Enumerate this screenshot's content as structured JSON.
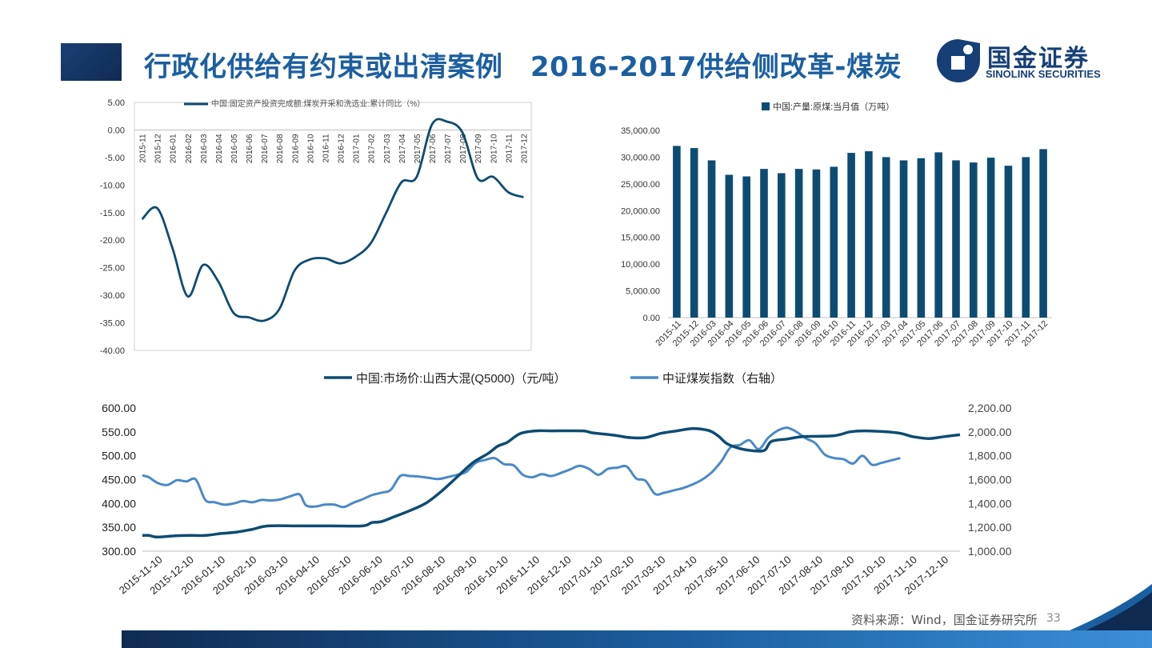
{
  "header": {
    "title": "行政化供给有约束或出清案例　2016-2017供给侧改革-煤炭"
  },
  "logo": {
    "cn": "国金证券",
    "en": "SINOLINK SECURITIES"
  },
  "footer": {
    "source": "资料来源：Wind，国金证券研究所",
    "page": "33"
  },
  "colors": {
    "dark_navy": "#0d4c72",
    "light_blue": "#4a89c8",
    "accent_blue": "#1c5fa0"
  },
  "chart_data": [
    {
      "type": "line",
      "title": "",
      "legend": [
        "中国:固定资产投资完成额:煤炭开采和洗选业:累计同比（%）"
      ],
      "categories": [
        "2015-11",
        "2015-12",
        "2016-01",
        "2016-02",
        "2016-03",
        "2016-04",
        "2016-05",
        "2016-06",
        "2016-07",
        "2016-08",
        "2016-09",
        "2016-10",
        "2016-11",
        "2016-12",
        "2017-01",
        "2017-02",
        "2017-03",
        "2017-04",
        "2017-05",
        "2017-06",
        "2017-07",
        "2017-08",
        "2017-09",
        "2017-10",
        "2017-11",
        "2017-12"
      ],
      "plot_points": [
        {
          "x": 0,
          "y": -16.2
        },
        {
          "x": 1,
          "y": -14.2
        },
        {
          "x": 2,
          "y": -21.5
        },
        {
          "x": 3,
          "y": -30.2
        },
        {
          "x": 4,
          "y": -24.5
        },
        {
          "x": 5,
          "y": -27.5
        },
        {
          "x": 6,
          "y": -33.2
        },
        {
          "x": 7,
          "y": -34.0
        },
        {
          "x": 8,
          "y": -34.6
        },
        {
          "x": 9,
          "y": -32.5
        },
        {
          "x": 10,
          "y": -25.5
        },
        {
          "x": 11,
          "y": -23.5
        },
        {
          "x": 12,
          "y": -23.3
        },
        {
          "x": 13,
          "y": -24.2
        },
        {
          "x": 14,
          "y": -23.0
        },
        {
          "x": 15,
          "y": -20.5
        },
        {
          "x": 16,
          "y": -15.0
        },
        {
          "x": 17,
          "y": -9.5
        },
        {
          "x": 18,
          "y": -8.5
        },
        {
          "x": 19,
          "y": 1.0
        },
        {
          "x": 20,
          "y": 1.5
        },
        {
          "x": 21,
          "y": -0.5
        },
        {
          "x": 22,
          "y": -8.8
        },
        {
          "x": 23,
          "y": -8.5
        },
        {
          "x": 24,
          "y": -11.3
        },
        {
          "x": 25,
          "y": -12.2
        }
      ],
      "y_ticks": [
        "5.00",
        "0.00",
        "-5.00",
        "-10.00",
        "-15.00",
        "-20.00",
        "-25.00",
        "-30.00",
        "-35.00",
        "-40.00"
      ],
      "ylim": [
        -40,
        5
      ]
    },
    {
      "type": "bar",
      "title": "",
      "legend": [
        "中国:产量:原煤:当月值（万吨）"
      ],
      "categories": [
        "2015-11",
        "2015-12",
        "2016-03",
        "2016-04",
        "2016-05",
        "2016-06",
        "2016-07",
        "2016-08",
        "2016-09",
        "2016-10",
        "2016-11",
        "2016-12",
        "2017-03",
        "2017-04",
        "2017-05",
        "2017-06",
        "2017-07",
        "2017-08",
        "2017-09",
        "2017-10",
        "2017-11",
        "2017-12"
      ],
      "values": [
        32100,
        31700,
        29400,
        26700,
        26400,
        27800,
        27000,
        27800,
        27700,
        28200,
        30800,
        31100,
        30000,
        29400,
        29800,
        30900,
        29400,
        29000,
        29900,
        28400,
        30000,
        31500
      ],
      "y_ticks": [
        "35,000.00",
        "30,000.00",
        "25,000.00",
        "20,000.00",
        "15,000.00",
        "10,000.00",
        "5,000.00",
        "0.00"
      ],
      "ylim": [
        0,
        35000
      ]
    },
    {
      "type": "line",
      "title": "",
      "legend": [
        "中国:市场价:山西大混(Q5000)（元/吨）",
        "中证煤炭指数（右轴）"
      ],
      "categories": [
        "2015-11-10",
        "2015-12-10",
        "2016-01-10",
        "2016-02-10",
        "2016-03-10",
        "2016-04-10",
        "2016-05-10",
        "2016-06-10",
        "2016-07-10",
        "2016-08-10",
        "2016-09-10",
        "2016-10-10",
        "2016-11-10",
        "2016-12-10",
        "2017-01-10",
        "2017-02-10",
        "2017-03-10",
        "2017-04-10",
        "2017-05-10",
        "2017-06-10",
        "2017-07-10",
        "2017-08-10",
        "2017-09-10",
        "2017-10-10",
        "2017-11-10",
        "2017-12-10"
      ],
      "y_ticks_left": [
        "600.00",
        "550.00",
        "500.00",
        "450.00",
        "400.00",
        "350.00",
        "300.00"
      ],
      "y_ticks_right": [
        "2,200.00",
        "2,000.00",
        "1,800.00",
        "1,600.00",
        "1,400.00",
        "1,200.00",
        "1,000.00"
      ],
      "ylim_left": [
        300,
        600
      ],
      "ylim_right": [
        1000,
        2200
      ],
      "series": [
        {
          "name": "中国:市场价:山西大混(Q5000)（元/吨）",
          "axis": "left",
          "points": [
            {
              "x": 0.0,
              "y": 333
            },
            {
              "x": 0.2,
              "y": 333
            },
            {
              "x": 0.4,
              "y": 330
            },
            {
              "x": 0.6,
              "y": 330
            },
            {
              "x": 1.0,
              "y": 332
            },
            {
              "x": 1.5,
              "y": 333
            },
            {
              "x": 2.0,
              "y": 333
            },
            {
              "x": 2.5,
              "y": 337
            },
            {
              "x": 3.0,
              "y": 340
            },
            {
              "x": 3.5,
              "y": 346
            },
            {
              "x": 4.0,
              "y": 353
            },
            {
              "x": 5.0,
              "y": 353
            },
            {
              "x": 6.0,
              "y": 353
            },
            {
              "x": 7.0,
              "y": 353
            },
            {
              "x": 7.3,
              "y": 360
            },
            {
              "x": 7.6,
              "y": 362
            },
            {
              "x": 8.0,
              "y": 372
            },
            {
              "x": 8.5,
              "y": 385
            },
            {
              "x": 9.0,
              "y": 400
            },
            {
              "x": 9.5,
              "y": 425
            },
            {
              "x": 10.0,
              "y": 455
            },
            {
              "x": 10.5,
              "y": 485
            },
            {
              "x": 11.0,
              "y": 505
            },
            {
              "x": 11.3,
              "y": 520
            },
            {
              "x": 11.6,
              "y": 528
            },
            {
              "x": 12.0,
              "y": 546
            },
            {
              "x": 12.5,
              "y": 552
            },
            {
              "x": 13.0,
              "y": 552
            },
            {
              "x": 14.0,
              "y": 552
            },
            {
              "x": 14.3,
              "y": 548
            },
            {
              "x": 15.0,
              "y": 543
            },
            {
              "x": 15.5,
              "y": 538
            },
            {
              "x": 16.0,
              "y": 538
            },
            {
              "x": 16.5,
              "y": 547
            },
            {
              "x": 17.0,
              "y": 552
            },
            {
              "x": 17.5,
              "y": 557
            },
            {
              "x": 18.0,
              "y": 553
            },
            {
              "x": 18.3,
              "y": 542
            },
            {
              "x": 18.6,
              "y": 525
            },
            {
              "x": 19.0,
              "y": 515
            },
            {
              "x": 19.5,
              "y": 510
            },
            {
              "x": 19.8,
              "y": 512
            },
            {
              "x": 20.0,
              "y": 530
            },
            {
              "x": 20.5,
              "y": 535
            },
            {
              "x": 21.0,
              "y": 540
            },
            {
              "x": 22.0,
              "y": 542
            },
            {
              "x": 22.5,
              "y": 550
            },
            {
              "x": 23.0,
              "y": 552
            },
            {
              "x": 24.0,
              "y": 548
            },
            {
              "x": 24.5,
              "y": 540
            },
            {
              "x": 25.0,
              "y": 536
            },
            {
              "x": 25.5,
              "y": 540
            },
            {
              "x": 26.0,
              "y": 544
            }
          ]
        },
        {
          "name": "中证煤炭指数（右轴）",
          "axis": "right",
          "points": [
            {
              "x": 0.0,
              "y": 1635
            },
            {
              "x": 0.2,
              "y": 1620
            },
            {
              "x": 0.5,
              "y": 1570
            },
            {
              "x": 0.8,
              "y": 1555
            },
            {
              "x": 1.1,
              "y": 1595
            },
            {
              "x": 1.4,
              "y": 1585
            },
            {
              "x": 1.7,
              "y": 1600
            },
            {
              "x": 2.0,
              "y": 1430
            },
            {
              "x": 2.3,
              "y": 1410
            },
            {
              "x": 2.6,
              "y": 1390
            },
            {
              "x": 2.9,
              "y": 1400
            },
            {
              "x": 3.2,
              "y": 1420
            },
            {
              "x": 3.5,
              "y": 1410
            },
            {
              "x": 3.8,
              "y": 1430
            },
            {
              "x": 4.1,
              "y": 1425
            },
            {
              "x": 4.4,
              "y": 1435
            },
            {
              "x": 4.7,
              "y": 1460
            },
            {
              "x": 5.0,
              "y": 1475
            },
            {
              "x": 5.2,
              "y": 1385
            },
            {
              "x": 5.5,
              "y": 1375
            },
            {
              "x": 5.8,
              "y": 1390
            },
            {
              "x": 6.1,
              "y": 1390
            },
            {
              "x": 6.4,
              "y": 1370
            },
            {
              "x": 6.7,
              "y": 1405
            },
            {
              "x": 7.0,
              "y": 1435
            },
            {
              "x": 7.3,
              "y": 1470
            },
            {
              "x": 7.6,
              "y": 1490
            },
            {
              "x": 7.9,
              "y": 1515
            },
            {
              "x": 8.2,
              "y": 1630
            },
            {
              "x": 8.5,
              "y": 1630
            },
            {
              "x": 8.8,
              "y": 1625
            },
            {
              "x": 9.1,
              "y": 1615
            },
            {
              "x": 9.4,
              "y": 1605
            },
            {
              "x": 9.7,
              "y": 1620
            },
            {
              "x": 10.0,
              "y": 1640
            },
            {
              "x": 10.3,
              "y": 1665
            },
            {
              "x": 10.6,
              "y": 1740
            },
            {
              "x": 10.9,
              "y": 1765
            },
            {
              "x": 11.2,
              "y": 1780
            },
            {
              "x": 11.5,
              "y": 1730
            },
            {
              "x": 11.8,
              "y": 1720
            },
            {
              "x": 12.1,
              "y": 1640
            },
            {
              "x": 12.4,
              "y": 1620
            },
            {
              "x": 12.7,
              "y": 1645
            },
            {
              "x": 13.0,
              "y": 1630
            },
            {
              "x": 13.3,
              "y": 1655
            },
            {
              "x": 13.6,
              "y": 1685
            },
            {
              "x": 13.9,
              "y": 1715
            },
            {
              "x": 14.2,
              "y": 1690
            },
            {
              "x": 14.5,
              "y": 1640
            },
            {
              "x": 14.8,
              "y": 1690
            },
            {
              "x": 15.1,
              "y": 1700
            },
            {
              "x": 15.4,
              "y": 1710
            },
            {
              "x": 15.7,
              "y": 1610
            },
            {
              "x": 16.0,
              "y": 1590
            },
            {
              "x": 16.3,
              "y": 1480
            },
            {
              "x": 16.6,
              "y": 1490
            },
            {
              "x": 16.9,
              "y": 1510
            },
            {
              "x": 17.2,
              "y": 1530
            },
            {
              "x": 17.5,
              "y": 1560
            },
            {
              "x": 17.8,
              "y": 1600
            },
            {
              "x": 18.1,
              "y": 1660
            },
            {
              "x": 18.4,
              "y": 1750
            },
            {
              "x": 18.7,
              "y": 1870
            },
            {
              "x": 19.0,
              "y": 1890
            },
            {
              "x": 19.3,
              "y": 1930
            },
            {
              "x": 19.6,
              "y": 1855
            },
            {
              "x": 19.9,
              "y": 1950
            },
            {
              "x": 20.2,
              "y": 2010
            },
            {
              "x": 20.5,
              "y": 2035
            },
            {
              "x": 20.8,
              "y": 2000
            },
            {
              "x": 21.1,
              "y": 1945
            },
            {
              "x": 21.4,
              "y": 1905
            },
            {
              "x": 21.7,
              "y": 1810
            },
            {
              "x": 22.0,
              "y": 1780
            },
            {
              "x": 22.3,
              "y": 1770
            },
            {
              "x": 22.6,
              "y": 1735
            },
            {
              "x": 22.9,
              "y": 1800
            },
            {
              "x": 23.2,
              "y": 1725
            },
            {
              "x": 23.5,
              "y": 1740
            },
            {
              "x": 23.8,
              "y": 1760
            },
            {
              "x": 24.1,
              "y": 1780
            }
          ]
        }
      ]
    }
  ]
}
